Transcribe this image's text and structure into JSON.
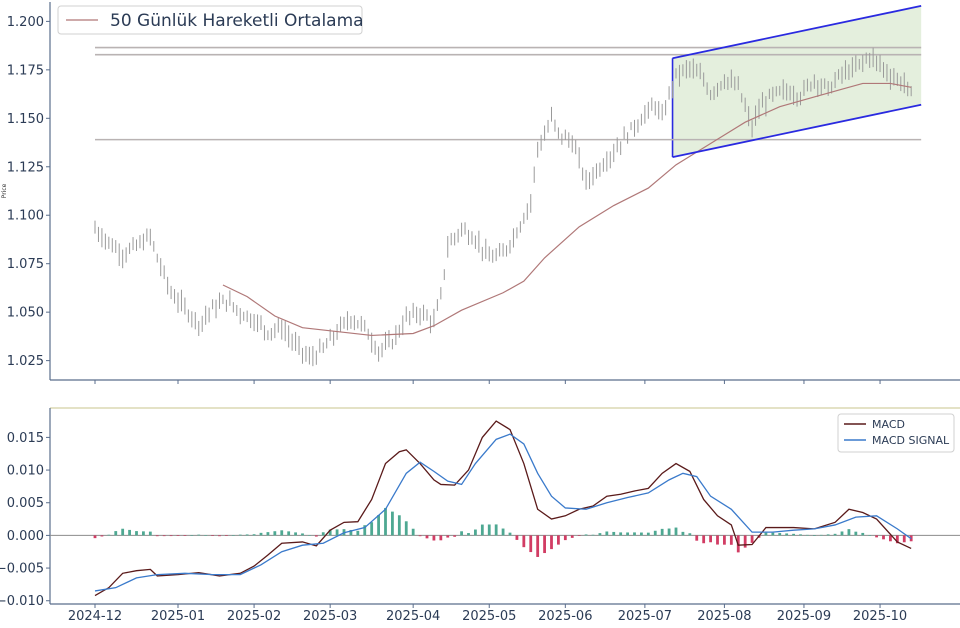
{
  "chart_data": [
    {
      "type": "candlestick",
      "ylabel": "Price",
      "ylim": [
        1.015,
        1.21
      ],
      "yticks": [
        "1.025",
        "1.050",
        "1.075",
        "1.100",
        "1.125",
        "1.150",
        "1.175",
        "1.200"
      ],
      "legend": {
        "label": "50 Günlük Hareketli Ortalama",
        "position": "top-left"
      },
      "price_anchors": [
        [
          0,
          1.093
        ],
        [
          4,
          1.086
        ],
        [
          8,
          1.08
        ],
        [
          12,
          1.084
        ],
        [
          16,
          1.089
        ],
        [
          18,
          1.078
        ],
        [
          22,
          1.06
        ],
        [
          26,
          1.052
        ],
        [
          30,
          1.044
        ],
        [
          34,
          1.052
        ],
        [
          38,
          1.056
        ],
        [
          42,
          1.05
        ],
        [
          46,
          1.046
        ],
        [
          50,
          1.04
        ],
        [
          54,
          1.042
        ],
        [
          58,
          1.033
        ],
        [
          62,
          1.026
        ],
        [
          66,
          1.031
        ],
        [
          70,
          1.04
        ],
        [
          74,
          1.047
        ],
        [
          78,
          1.042
        ],
        [
          82,
          1.03
        ],
        [
          86,
          1.035
        ],
        [
          90,
          1.047
        ],
        [
          94,
          1.05
        ],
        [
          98,
          1.045
        ],
        [
          100,
          1.058
        ],
        [
          102,
          1.084
        ],
        [
          106,
          1.093
        ],
        [
          110,
          1.088
        ],
        [
          114,
          1.078
        ],
        [
          118,
          1.08
        ],
        [
          122,
          1.092
        ],
        [
          126,
          1.107
        ],
        [
          128,
          1.135
        ],
        [
          130,
          1.141
        ],
        [
          132,
          1.15
        ],
        [
          134,
          1.142
        ],
        [
          138,
          1.138
        ],
        [
          140,
          1.128
        ],
        [
          142,
          1.117
        ],
        [
          146,
          1.125
        ],
        [
          150,
          1.133
        ],
        [
          154,
          1.142
        ],
        [
          158,
          1.15
        ],
        [
          162,
          1.157
        ],
        [
          164,
          1.15
        ],
        [
          166,
          1.162
        ],
        [
          168,
          1.172
        ],
        [
          172,
          1.176
        ],
        [
          176,
          1.17
        ],
        [
          178,
          1.163
        ],
        [
          182,
          1.17
        ],
        [
          186,
          1.166
        ],
        [
          190,
          1.145
        ],
        [
          192,
          1.155
        ],
        [
          196,
          1.162
        ],
        [
          200,
          1.164
        ],
        [
          204,
          1.162
        ],
        [
          208,
          1.17
        ],
        [
          212,
          1.165
        ],
        [
          216,
          1.173
        ],
        [
          220,
          1.176
        ],
        [
          224,
          1.182
        ],
        [
          228,
          1.176
        ],
        [
          230,
          1.172
        ],
        [
          234,
          1.168
        ],
        [
          236,
          1.162
        ]
      ],
      "moving_average": [
        [
          37,
          1.064
        ],
        [
          44,
          1.058
        ],
        [
          52,
          1.048
        ],
        [
          60,
          1.042
        ],
        [
          70,
          1.04
        ],
        [
          80,
          1.038
        ],
        [
          92,
          1.039
        ],
        [
          98,
          1.043
        ],
        [
          106,
          1.051
        ],
        [
          118,
          1.06
        ],
        [
          124,
          1.066
        ],
        [
          130,
          1.078
        ],
        [
          140,
          1.094
        ],
        [
          150,
          1.105
        ],
        [
          160,
          1.114
        ],
        [
          168,
          1.126
        ],
        [
          178,
          1.137
        ],
        [
          188,
          1.148
        ],
        [
          198,
          1.156
        ],
        [
          208,
          1.161
        ],
        [
          216,
          1.165
        ],
        [
          222,
          1.168
        ],
        [
          230,
          1.168
        ],
        [
          236,
          1.166
        ]
      ],
      "horizontal_lines": [
        1.1865,
        1.1828,
        1.139
      ],
      "channel": {
        "upper": [
          [
            167,
            1.181
          ],
          [
            236,
            1.208
          ]
        ],
        "lower": [
          [
            167,
            1.13
          ],
          [
            236,
            1.157
          ]
        ]
      }
    },
    {
      "type": "line",
      "ylim": [
        -0.0105,
        0.0195
      ],
      "yticks": [
        "−0.010",
        "−0.005",
        "0.000",
        "0.005",
        "0.010",
        "0.015"
      ],
      "xticks": [
        "2024-12",
        "2025-01",
        "2025-02",
        "2025-03",
        "2025-04",
        "2025-05",
        "2025-06",
        "2025-07",
        "2025-08",
        "2025-09",
        "2025-10"
      ],
      "legend_position": "top-right",
      "series": [
        {
          "name": "MACD",
          "color": "#5a1a1a",
          "values": [
            [
              0,
              -0.0092
            ],
            [
              4,
              -0.008
            ],
            [
              8,
              -0.0058
            ],
            [
              12,
              -0.0054
            ],
            [
              16,
              -0.0052
            ],
            [
              18,
              -0.0062
            ],
            [
              24,
              -0.006
            ],
            [
              30,
              -0.0057
            ],
            [
              36,
              -0.0062
            ],
            [
              42,
              -0.0058
            ],
            [
              46,
              -0.0047
            ],
            [
              50,
              -0.003
            ],
            [
              54,
              -0.0012
            ],
            [
              60,
              -0.001
            ],
            [
              64,
              -0.0016
            ],
            [
              68,
              0.0008
            ],
            [
              72,
              0.002
            ],
            [
              76,
              0.0021
            ],
            [
              80,
              0.0055
            ],
            [
              84,
              0.011
            ],
            [
              88,
              0.0128
            ],
            [
              90,
              0.0131
            ],
            [
              94,
              0.011
            ],
            [
              98,
              0.0085
            ],
            [
              100,
              0.0078
            ],
            [
              104,
              0.0077
            ],
            [
              108,
              0.01
            ],
            [
              112,
              0.015
            ],
            [
              116,
              0.0175
            ],
            [
              120,
              0.0162
            ],
            [
              124,
              0.011
            ],
            [
              128,
              0.004
            ],
            [
              132,
              0.0025
            ],
            [
              136,
              0.003
            ],
            [
              140,
              0.004
            ],
            [
              144,
              0.0045
            ],
            [
              148,
              0.006
            ],
            [
              152,
              0.0063
            ],
            [
              156,
              0.0068
            ],
            [
              160,
              0.0072
            ],
            [
              164,
              0.0095
            ],
            [
              168,
              0.011
            ],
            [
              172,
              0.0098
            ],
            [
              176,
              0.0055
            ],
            [
              180,
              0.003
            ],
            [
              184,
              0.0016
            ],
            [
              186,
              -0.0015
            ],
            [
              190,
              -0.0014
            ],
            [
              194,
              0.0012
            ],
            [
              198,
              0.0012
            ],
            [
              202,
              0.0012
            ],
            [
              208,
              0.001
            ],
            [
              214,
              0.002
            ],
            [
              218,
              0.004
            ],
            [
              222,
              0.0035
            ],
            [
              226,
              0.0025
            ],
            [
              232,
              -0.001
            ],
            [
              236,
              -0.002
            ]
          ]
        },
        {
          "name": "MACD SIGNAL",
          "color": "#3a7acb",
          "values": [
            [
              0,
              -0.0085
            ],
            [
              6,
              -0.008
            ],
            [
              12,
              -0.0065
            ],
            [
              18,
              -0.006
            ],
            [
              26,
              -0.0058
            ],
            [
              34,
              -0.006
            ],
            [
              42,
              -0.006
            ],
            [
              48,
              -0.0045
            ],
            [
              54,
              -0.0025
            ],
            [
              60,
              -0.0015
            ],
            [
              66,
              -0.0012
            ],
            [
              72,
              0.0004
            ],
            [
              78,
              0.0012
            ],
            [
              84,
              0.004
            ],
            [
              90,
              0.0095
            ],
            [
              94,
              0.0112
            ],
            [
              98,
              0.0098
            ],
            [
              102,
              0.0083
            ],
            [
              106,
              0.0078
            ],
            [
              110,
              0.011
            ],
            [
              116,
              0.0147
            ],
            [
              120,
              0.0155
            ],
            [
              124,
              0.014
            ],
            [
              128,
              0.0095
            ],
            [
              132,
              0.006
            ],
            [
              136,
              0.0042
            ],
            [
              142,
              0.004
            ],
            [
              148,
              0.005
            ],
            [
              154,
              0.0058
            ],
            [
              160,
              0.0065
            ],
            [
              166,
              0.0085
            ],
            [
              170,
              0.0095
            ],
            [
              174,
              0.009
            ],
            [
              178,
              0.006
            ],
            [
              184,
              0.004
            ],
            [
              190,
              0.0005
            ],
            [
              196,
              0.0005
            ],
            [
              202,
              0.0008
            ],
            [
              208,
              0.001
            ],
            [
              214,
              0.0016
            ],
            [
              220,
              0.0028
            ],
            [
              226,
              0.003
            ],
            [
              232,
              0.001
            ],
            [
              236,
              -0.0005
            ]
          ]
        }
      ],
      "histogram_colors": {
        "positive": "#4ea892",
        "negative": "#d23c64"
      }
    }
  ]
}
